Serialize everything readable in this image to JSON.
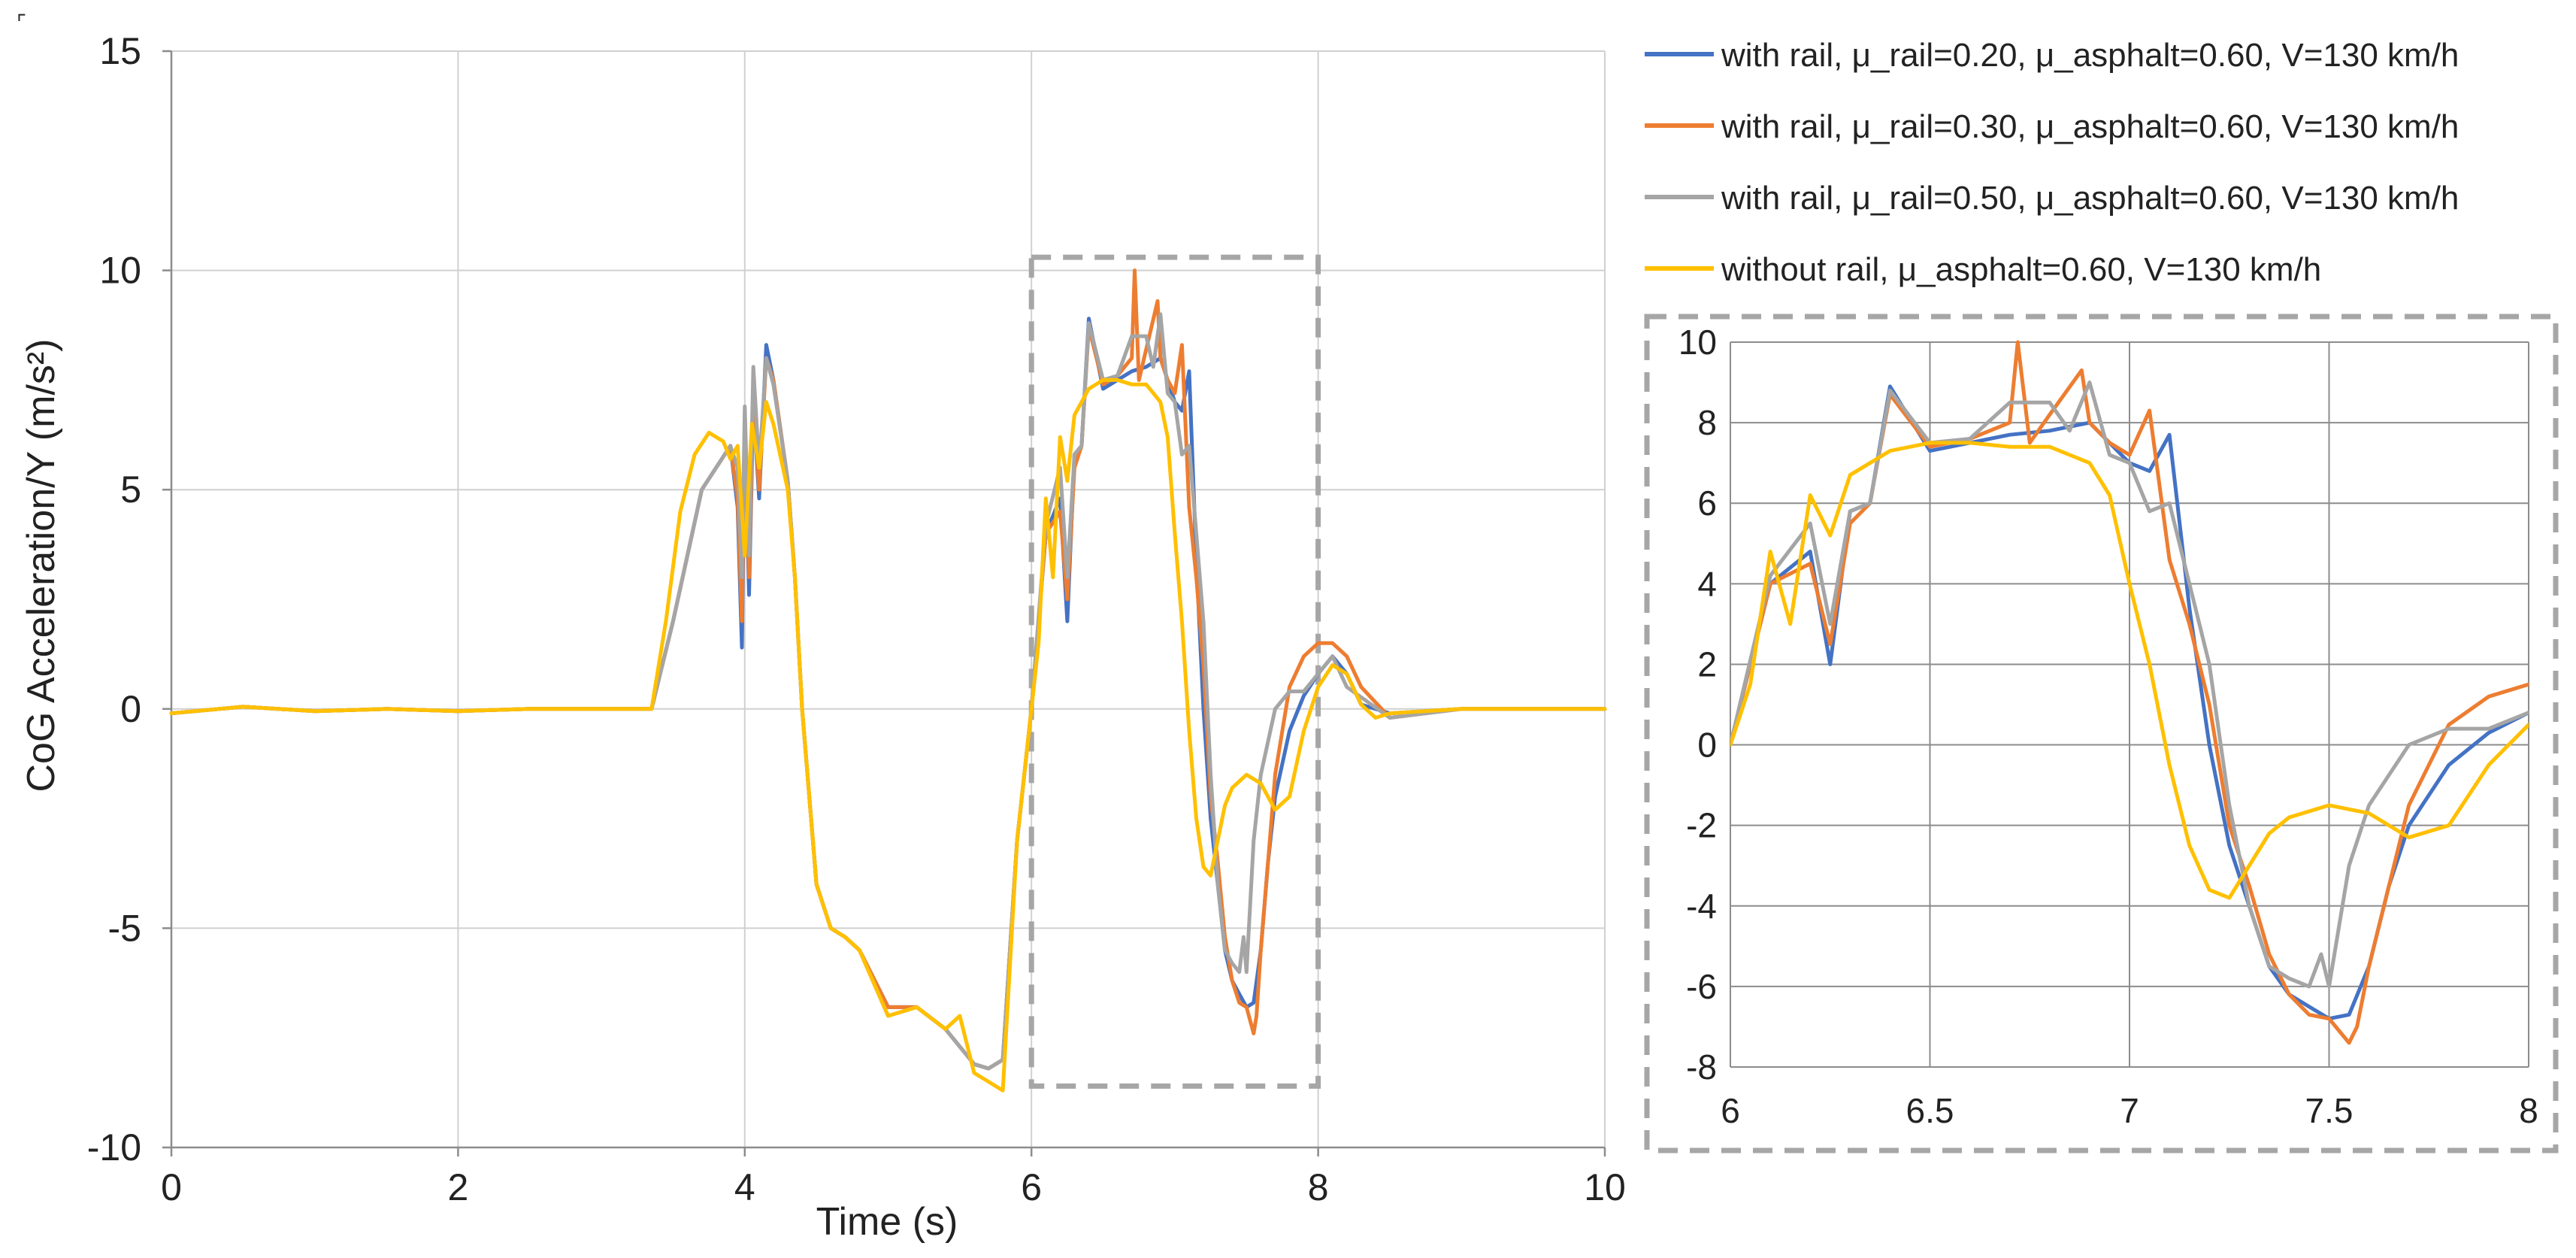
{
  "chart_data": [
    {
      "id": "main",
      "type": "line",
      "title": "",
      "xlabel": "Time  (s)",
      "ylabel": "CoG Acceleration/Y (m/s²)",
      "xlim": [
        0,
        10
      ],
      "ylim": [
        -10,
        15
      ],
      "xticks": [
        0,
        2,
        4,
        6,
        8,
        10
      ],
      "yticks": [
        -10,
        -5,
        0,
        5,
        10,
        15
      ],
      "grid": true,
      "legend": "top-right",
      "zoom_box": {
        "x": [
          6,
          8
        ],
        "y": [
          -8.6,
          10.3
        ],
        "style": "dashed",
        "color": "#a6a6a6"
      },
      "series": [
        {
          "name": "with rail, μ_rail=0.20, μ_asphalt=0.60, V=130 km/h",
          "color": "#4472C4",
          "x": [
            0,
            0.5,
            1,
            1.5,
            2,
            2.5,
            3,
            3.35,
            3.5,
            3.7,
            3.9,
            3.95,
            3.98,
            4.0,
            4.03,
            4.06,
            4.1,
            4.15,
            4.2,
            4.3,
            4.35,
            4.4,
            4.5,
            4.6,
            4.7,
            4.8,
            5.0,
            5.2,
            5.4,
            5.6,
            5.7,
            5.8,
            5.9,
            6.0,
            6.1,
            6.2,
            6.25,
            6.3,
            6.35,
            6.4,
            6.5,
            6.6,
            6.7,
            6.8,
            6.9,
            7.0,
            7.05,
            7.1,
            7.15,
            7.2,
            7.25,
            7.3,
            7.35,
            7.4,
            7.45,
            7.5,
            7.55,
            7.6,
            7.65,
            7.7,
            7.8,
            7.9,
            8.0,
            8.1,
            8.2,
            8.3,
            8.5,
            9.0,
            9.5,
            10.0
          ],
          "y": [
            -0.1,
            0.05,
            -0.05,
            0.0,
            -0.05,
            0.0,
            0.0,
            0.0,
            2.0,
            5.0,
            6.0,
            4.6,
            1.4,
            6.5,
            2.6,
            7.0,
            4.8,
            8.3,
            7.5,
            5.2,
            3.0,
            0.0,
            -4.0,
            -5.0,
            -5.2,
            -5.5,
            -6.8,
            -6.8,
            -7.3,
            -8.1,
            -8.2,
            -8.0,
            -3.0,
            0.0,
            4.0,
            4.8,
            2.0,
            5.8,
            6.0,
            8.9,
            7.3,
            7.5,
            7.7,
            7.8,
            8.0,
            7.0,
            6.8,
            7.7,
            3.4,
            0.0,
            -2.5,
            -4.0,
            -5.5,
            -6.2,
            -6.5,
            -6.8,
            -6.7,
            -5.5,
            -3.5,
            -2.0,
            -0.5,
            0.3,
            0.8,
            1.2,
            0.8,
            0.1,
            -0.1,
            0.0,
            0.0,
            0.0
          ]
        },
        {
          "name": "with rail, μ_rail=0.30, μ_asphalt=0.60, V=130 km/h",
          "color": "#ED7D31",
          "x": [
            0,
            0.5,
            1,
            1.5,
            2,
            2.5,
            3,
            3.35,
            3.5,
            3.7,
            3.9,
            3.95,
            3.98,
            4.0,
            4.03,
            4.06,
            4.1,
            4.15,
            4.2,
            4.3,
            4.35,
            4.4,
            4.5,
            4.6,
            4.7,
            4.8,
            5.0,
            5.2,
            5.4,
            5.6,
            5.7,
            5.8,
            5.9,
            6.0,
            6.1,
            6.2,
            6.25,
            6.3,
            6.35,
            6.4,
            6.5,
            6.6,
            6.7,
            6.72,
            6.75,
            6.8,
            6.88,
            6.9,
            6.95,
            7.0,
            7.05,
            7.1,
            7.15,
            7.2,
            7.25,
            7.3,
            7.35,
            7.4,
            7.45,
            7.5,
            7.55,
            7.57,
            7.6,
            7.65,
            7.7,
            7.8,
            7.9,
            8.0,
            8.1,
            8.2,
            8.3,
            8.5,
            9.0,
            9.5,
            10.0
          ],
          "y": [
            -0.1,
            0.05,
            -0.05,
            0.0,
            -0.05,
            0.0,
            0.0,
            0.0,
            2.0,
            5.0,
            6.0,
            4.8,
            2.0,
            6.7,
            3.0,
            7.2,
            5.0,
            8.0,
            7.5,
            5.2,
            3.0,
            0.0,
            -4.0,
            -5.0,
            -5.2,
            -5.5,
            -6.8,
            -6.8,
            -7.3,
            -8.1,
            -8.2,
            -8.0,
            -3.0,
            0.0,
            4.0,
            4.5,
            2.5,
            5.5,
            6.0,
            8.7,
            7.4,
            7.6,
            8.0,
            10.0,
            7.5,
            8.2,
            9.3,
            8.0,
            7.5,
            7.2,
            8.3,
            4.6,
            3.0,
            1.0,
            -2.0,
            -3.5,
            -5.2,
            -6.2,
            -6.7,
            -6.8,
            -7.4,
            -7.0,
            -5.5,
            -3.5,
            -1.5,
            0.5,
            1.2,
            1.5,
            1.5,
            1.2,
            0.5,
            -0.2,
            0.0,
            0.0,
            0.0
          ]
        },
        {
          "name": "with rail, μ_rail=0.50, μ_asphalt=0.60, V=130 km/h",
          "color": "#A5A5A5",
          "x": [
            0,
            0.5,
            1,
            1.5,
            2,
            2.5,
            3,
            3.35,
            3.5,
            3.7,
            3.9,
            3.95,
            3.98,
            4.0,
            4.03,
            4.06,
            4.1,
            4.15,
            4.2,
            4.3,
            4.35,
            4.4,
            4.5,
            4.6,
            4.7,
            4.8,
            5.0,
            5.2,
            5.4,
            5.6,
            5.7,
            5.8,
            5.9,
            6.0,
            6.1,
            6.2,
            6.25,
            6.3,
            6.35,
            6.4,
            6.5,
            6.6,
            6.7,
            6.8,
            6.85,
            6.9,
            6.95,
            7.0,
            7.05,
            7.1,
            7.15,
            7.2,
            7.25,
            7.3,
            7.35,
            7.4,
            7.45,
            7.48,
            7.5,
            7.55,
            7.6,
            7.7,
            7.8,
            7.9,
            8.0,
            8.1,
            8.2,
            8.5,
            9.0,
            9.5,
            10.0
          ],
          "y": [
            -0.1,
            0.05,
            -0.05,
            0.0,
            -0.05,
            0.0,
            0.0,
            0.0,
            2.0,
            5.0,
            6.0,
            5.5,
            3.0,
            6.9,
            3.5,
            7.8,
            5.5,
            8.0,
            7.4,
            5.2,
            3.0,
            0.0,
            -4.0,
            -5.0,
            -5.2,
            -5.5,
            -7.0,
            -6.8,
            -7.3,
            -8.1,
            -8.2,
            -8.0,
            -3.0,
            0.0,
            4.2,
            5.5,
            3.0,
            5.8,
            6.0,
            8.8,
            7.5,
            7.6,
            8.5,
            8.5,
            7.8,
            9.0,
            7.2,
            7.0,
            5.8,
            6.0,
            4.0,
            2.0,
            -1.5,
            -4.0,
            -5.5,
            -5.8,
            -6.0,
            -5.2,
            -6.0,
            -3.0,
            -1.5,
            0.0,
            0.4,
            0.4,
            0.8,
            1.2,
            0.5,
            -0.2,
            0.0,
            0.0,
            0.0
          ]
        },
        {
          "name": "without rail, μ_asphalt=0.60, V=130 km/h",
          "color": "#FFC000",
          "x": [
            0,
            0.5,
            1,
            1.5,
            2,
            2.5,
            3,
            3.35,
            3.45,
            3.55,
            3.65,
            3.75,
            3.85,
            3.9,
            3.95,
            4.0,
            4.05,
            4.1,
            4.15,
            4.2,
            4.3,
            4.35,
            4.4,
            4.5,
            4.6,
            4.7,
            4.8,
            5.0,
            5.2,
            5.4,
            5.5,
            5.6,
            5.7,
            5.8,
            5.9,
            6.0,
            6.05,
            6.1,
            6.15,
            6.2,
            6.25,
            6.3,
            6.4,
            6.5,
            6.6,
            6.7,
            6.8,
            6.9,
            6.95,
            7.0,
            7.05,
            7.1,
            7.15,
            7.2,
            7.25,
            7.3,
            7.35,
            7.4,
            7.5,
            7.6,
            7.7,
            7.8,
            7.9,
            8.0,
            8.1,
            8.2,
            8.3,
            8.4,
            8.5,
            9.0,
            9.5,
            10.0
          ],
          "y": [
            -0.1,
            0.05,
            -0.05,
            0.0,
            -0.05,
            0.0,
            0.0,
            0.0,
            2.0,
            4.5,
            5.8,
            6.3,
            6.1,
            5.7,
            6.0,
            3.5,
            6.5,
            5.5,
            7.0,
            6.5,
            5.0,
            3.0,
            0.0,
            -4.0,
            -5.0,
            -5.2,
            -5.5,
            -7.0,
            -6.8,
            -7.3,
            -7.0,
            -8.3,
            -8.5,
            -8.7,
            -3.0,
            0.0,
            1.5,
            4.8,
            3.0,
            6.2,
            5.2,
            6.7,
            7.3,
            7.5,
            7.5,
            7.4,
            7.4,
            7.0,
            6.2,
            4.0,
            2.0,
            -0.5,
            -2.5,
            -3.6,
            -3.8,
            -3.0,
            -2.2,
            -1.8,
            -1.5,
            -1.7,
            -2.3,
            -2.0,
            -0.5,
            0.5,
            1.0,
            0.8,
            0.1,
            -0.2,
            -0.1,
            0.0,
            0.0,
            0.0
          ]
        }
      ]
    },
    {
      "id": "inset",
      "type": "line",
      "title": "",
      "xlabel": "",
      "ylabel": "",
      "xlim": [
        6,
        8
      ],
      "ylim": [
        -8,
        10
      ],
      "xticks": [
        6,
        6.5,
        7,
        7.5,
        8
      ],
      "yticks": [
        -8,
        -6,
        -4,
        -2,
        0,
        2,
        4,
        6,
        8,
        10
      ],
      "grid": true,
      "legend": "none",
      "frame": "dashed"
    }
  ]
}
